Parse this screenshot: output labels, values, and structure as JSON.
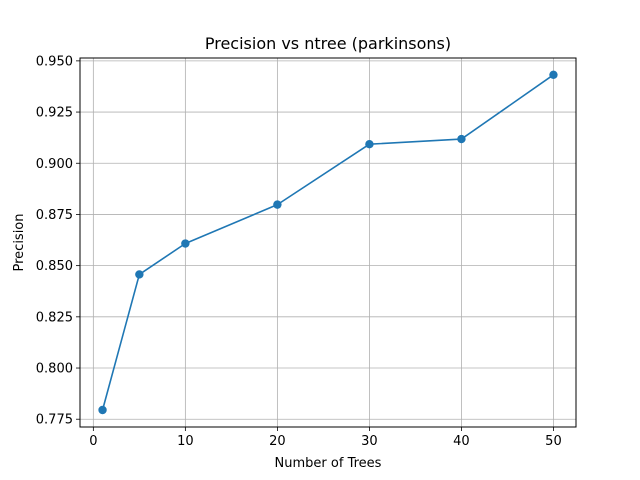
{
  "chart_data": {
    "type": "line",
    "title": "Precision vs ntree (parkinsons)",
    "xlabel": "Number of Trees",
    "ylabel": "Precision",
    "x": [
      1,
      5,
      10,
      20,
      30,
      40,
      50
    ],
    "series": [
      {
        "values": [
          0.7795,
          0.8457,
          0.8608,
          0.8798,
          0.9093,
          0.9118,
          0.9432
        ],
        "color": "#1f77b4",
        "marker": "circle"
      }
    ],
    "xlim": [
      -1.45,
      52.45
    ],
    "ylim": [
      0.7712,
      0.9514
    ],
    "xticks": [
      0,
      10,
      20,
      30,
      40,
      50
    ],
    "xtick_labels": [
      "0",
      "10",
      "20",
      "30",
      "40",
      "50"
    ],
    "yticks": [
      0.775,
      0.8,
      0.825,
      0.85,
      0.875,
      0.9,
      0.925,
      0.95
    ],
    "ytick_labels": [
      "0.775",
      "0.800",
      "0.825",
      "0.850",
      "0.875",
      "0.900",
      "0.925",
      "0.950"
    ],
    "grid": true,
    "grid_color": "#b0b0b0"
  }
}
